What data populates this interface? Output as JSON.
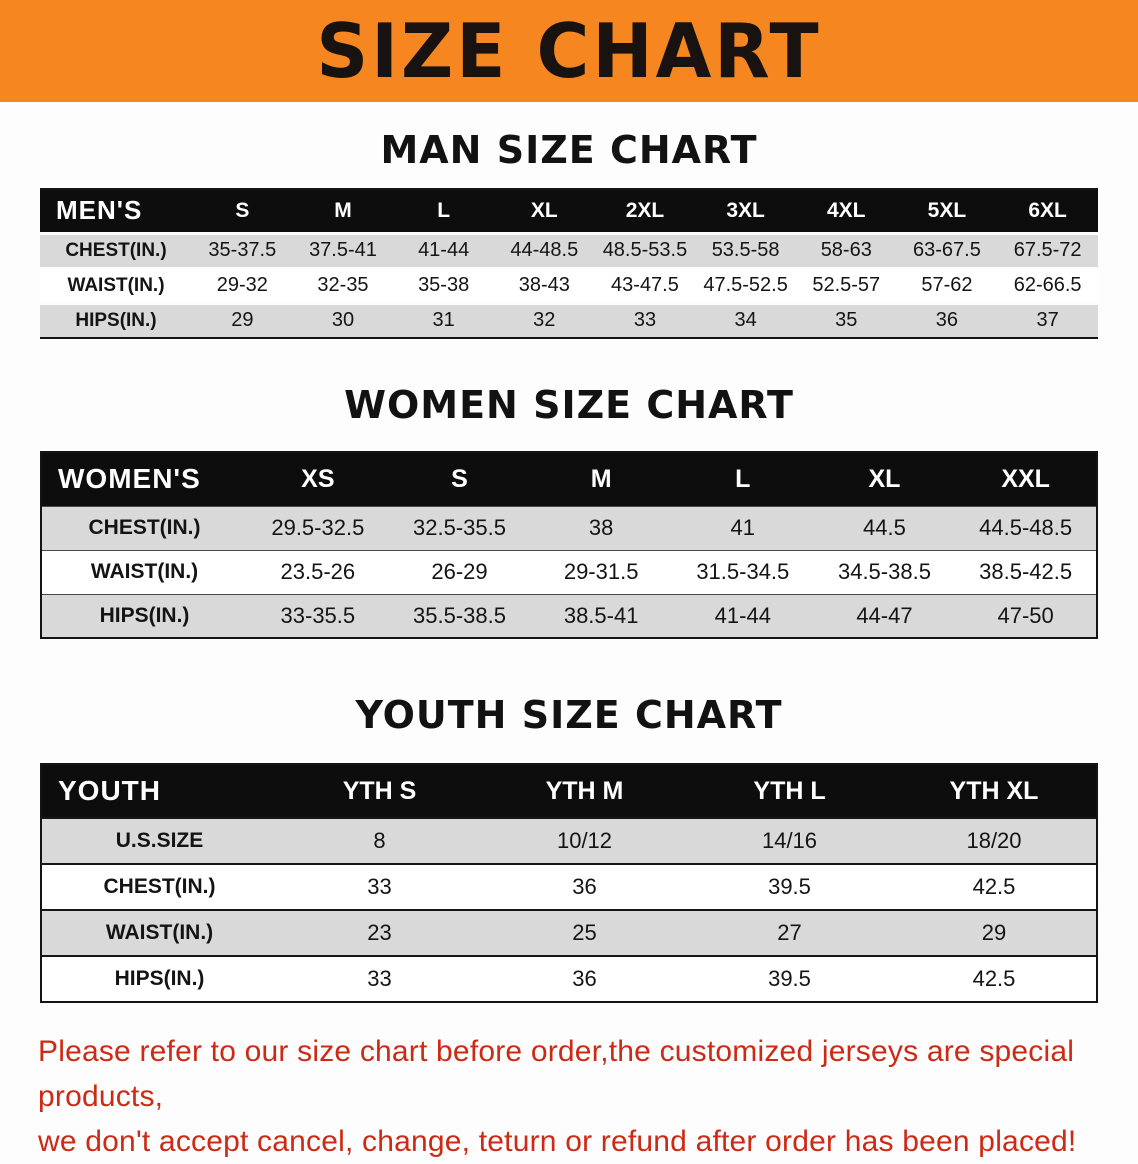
{
  "banner": {
    "title": "SIZE CHART"
  },
  "sections": [
    {
      "id": "men",
      "heading": "MAN SIZE CHART",
      "table": {
        "header": [
          "MEN'S",
          "S",
          "M",
          "L",
          "XL",
          "2XL",
          "3XL",
          "4XL",
          "5XL",
          "6XL"
        ],
        "rows": [
          {
            "label": "CHEST(IN.)",
            "values": [
              "35-37.5",
              "37.5-41",
              "41-44",
              "44-48.5",
              "48.5-53.5",
              "53.5-58",
              "58-63",
              "63-67.5",
              "67.5-72"
            ]
          },
          {
            "label": "WAIST(IN.)",
            "values": [
              "29-32",
              "32-35",
              "35-38",
              "38-43",
              "43-47.5",
              "47.5-52.5",
              "52.5-57",
              "57-62",
              "62-66.5"
            ]
          },
          {
            "label": "HIPS(IN.)",
            "values": [
              "29",
              "30",
              "31",
              "32",
              "33",
              "34",
              "35",
              "36",
              "37"
            ]
          }
        ]
      }
    },
    {
      "id": "women",
      "heading": "WOMEN SIZE CHART",
      "table": {
        "header": [
          "WOMEN'S",
          "XS",
          "S",
          "M",
          "L",
          "XL",
          "XXL"
        ],
        "rows": [
          {
            "label": "CHEST(IN.)",
            "values": [
              "29.5-32.5",
              "32.5-35.5",
              "38",
              "41",
              "44.5",
              "44.5-48.5"
            ]
          },
          {
            "label": "WAIST(IN.)",
            "values": [
              "23.5-26",
              "26-29",
              "29-31.5",
              "31.5-34.5",
              "34.5-38.5",
              "38.5-42.5"
            ]
          },
          {
            "label": "HIPS(IN.)",
            "values": [
              "33-35.5",
              "35.5-38.5",
              "38.5-41",
              "41-44",
              "44-47",
              "47-50"
            ]
          }
        ]
      }
    },
    {
      "id": "youth",
      "heading": "YOUTH SIZE CHART",
      "table": {
        "header": [
          "YOUTH",
          "YTH S",
          "YTH M",
          "YTH L",
          "YTH XL"
        ],
        "rows": [
          {
            "label": "U.S.SIZE",
            "values": [
              "8",
              "10/12",
              "14/16",
              "18/20"
            ]
          },
          {
            "label": "CHEST(IN.)",
            "values": [
              "33",
              "36",
              "39.5",
              "42.5"
            ]
          },
          {
            "label": "WAIST(IN.)",
            "values": [
              "23",
              "25",
              "27",
              "29"
            ]
          },
          {
            "label": "HIPS(IN.)",
            "values": [
              "33",
              "36",
              "39.5",
              "42.5"
            ]
          }
        ]
      }
    }
  ],
  "disclaimer": {
    "line1": "Please refer to our size chart before order,the customized jerseys are special products,",
    "line2": "we don't accept cancel, change, teturn or refund after order has been placed!"
  },
  "colors": {
    "banner_orange": "#f6861f",
    "table_header_black": "#0d0d0d",
    "shaded_row_gray": "#d9d9d9",
    "disclaimer_red": "#cd2a15",
    "title_black": "#181310"
  }
}
